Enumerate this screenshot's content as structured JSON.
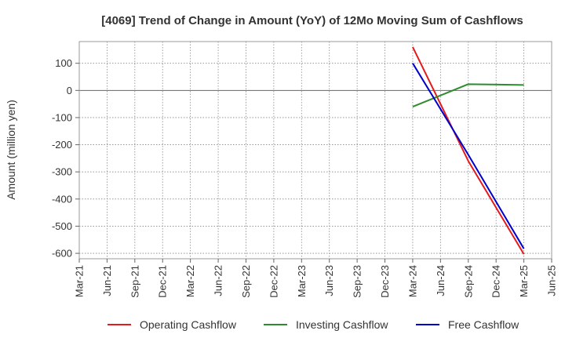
{
  "chart_data": {
    "type": "line",
    "title": "[4069]  Trend of Change in Amount (YoY) of 12Mo Moving Sum of Cashflows",
    "xlabel": "",
    "ylabel": "Amount (million yen)",
    "x_ticks": [
      "Mar-21",
      "Jun-21",
      "Sep-21",
      "Dec-21",
      "Mar-22",
      "Jun-22",
      "Sep-22",
      "Dec-22",
      "Mar-23",
      "Jun-23",
      "Sep-23",
      "Dec-23",
      "Mar-24",
      "Jun-24",
      "Sep-24",
      "Dec-24",
      "Mar-25",
      "Jun-25"
    ],
    "y_ticks": [
      100,
      0,
      -100,
      -200,
      -300,
      -400,
      -500,
      -600
    ],
    "ylim": [
      -620,
      180
    ],
    "grid": true,
    "legend_position": "bottom",
    "series": [
      {
        "name": "Operating Cashflow",
        "color": "#e41a1c",
        "x": [
          "Mar-24",
          "Sep-24",
          "Mar-25"
        ],
        "values": [
          160,
          -260,
          -603
        ]
      },
      {
        "name": "Investing Cashflow",
        "color": "#2e8b2e",
        "x": [
          "Mar-24",
          "Sep-24",
          "Mar-25"
        ],
        "values": [
          -60,
          23,
          20
        ]
      },
      {
        "name": "Free Cashflow",
        "color": "#0000cc",
        "x": [
          "Mar-24",
          "Sep-24",
          "Mar-25"
        ],
        "values": [
          100,
          -237,
          -583
        ]
      }
    ]
  }
}
